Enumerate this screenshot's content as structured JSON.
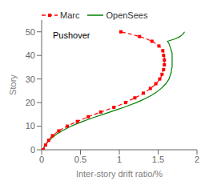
{
  "chart_data": {
    "type": "line",
    "xlabel": "Inter-story drift ratio/%",
    "ylabel": "Story",
    "xlim": [
      0,
      2
    ],
    "ylim": [
      0,
      55
    ],
    "xticks": [
      0,
      0.5,
      1,
      1.5,
      2
    ],
    "yticks": [
      0,
      10,
      20,
      30,
      40,
      50
    ],
    "grid": false,
    "legend": "upper left",
    "annotation": "Pushover",
    "series": [
      {
        "name": "Marc",
        "color": "red",
        "line_style": "dashed",
        "marker": "square",
        "y": [
          0,
          1,
          2,
          3,
          4,
          5,
          6,
          7,
          8,
          9,
          10,
          11,
          12,
          13,
          14,
          15,
          16,
          17,
          18,
          19,
          20,
          21,
          22,
          23,
          24,
          25,
          26,
          27,
          28,
          29,
          30,
          31,
          32,
          33,
          34,
          35,
          36,
          37,
          38,
          39,
          40,
          41,
          42,
          43,
          44,
          45,
          46,
          47,
          48,
          49,
          50
        ],
        "x": [
          0.02,
          0.03,
          0.05,
          0.07,
          0.09,
          0.11,
          0.14,
          0.18,
          0.22,
          0.27,
          0.33,
          0.39,
          0.46,
          0.53,
          0.6,
          0.68,
          0.76,
          0.85,
          0.93,
          1.01,
          1.08,
          1.14,
          1.2,
          1.26,
          1.31,
          1.36,
          1.4,
          1.44,
          1.47,
          1.5,
          1.52,
          1.54,
          1.55,
          1.56,
          1.57,
          1.57,
          1.58,
          1.58,
          1.58,
          1.58,
          1.57,
          1.57,
          1.56,
          1.54,
          1.51,
          1.47,
          1.42,
          1.35,
          1.26,
          1.15,
          1.02
        ],
        "marker_y": [
          0,
          2,
          4,
          6,
          8,
          10,
          12,
          14,
          16,
          18,
          20,
          22,
          24,
          26,
          28,
          30,
          32,
          34,
          36,
          38,
          40,
          42,
          44,
          46,
          48,
          50
        ],
        "marker_x": [
          0.02,
          0.05,
          0.09,
          0.14,
          0.22,
          0.33,
          0.46,
          0.6,
          0.76,
          0.93,
          1.08,
          1.2,
          1.31,
          1.4,
          1.47,
          1.52,
          1.55,
          1.57,
          1.58,
          1.58,
          1.57,
          1.56,
          1.51,
          1.42,
          1.26,
          1.02
        ]
      },
      {
        "name": "OpenSees",
        "color": "green",
        "line_style": "solid",
        "y": [
          0,
          1,
          2,
          3,
          4,
          5,
          6,
          7,
          8,
          9,
          10,
          11,
          12,
          13,
          14,
          15,
          16,
          17,
          18,
          19,
          20,
          21,
          22,
          23,
          24,
          25,
          26,
          27,
          28,
          29,
          30,
          31,
          32,
          33,
          34,
          35,
          36,
          37,
          38,
          39,
          40,
          41,
          42,
          43,
          44,
          45,
          46,
          47,
          48,
          49,
          50
        ],
        "x": [
          0.02,
          0.03,
          0.05,
          0.07,
          0.1,
          0.13,
          0.17,
          0.21,
          0.26,
          0.32,
          0.38,
          0.45,
          0.53,
          0.61,
          0.7,
          0.79,
          0.88,
          0.97,
          1.06,
          1.14,
          1.22,
          1.29,
          1.35,
          1.41,
          1.46,
          1.5,
          1.54,
          1.57,
          1.6,
          1.62,
          1.64,
          1.65,
          1.66,
          1.67,
          1.67,
          1.68,
          1.68,
          1.68,
          1.68,
          1.68,
          1.68,
          1.68,
          1.67,
          1.66,
          1.65,
          1.64,
          1.62,
          1.72,
          1.78,
          1.82,
          1.84
        ]
      }
    ]
  }
}
